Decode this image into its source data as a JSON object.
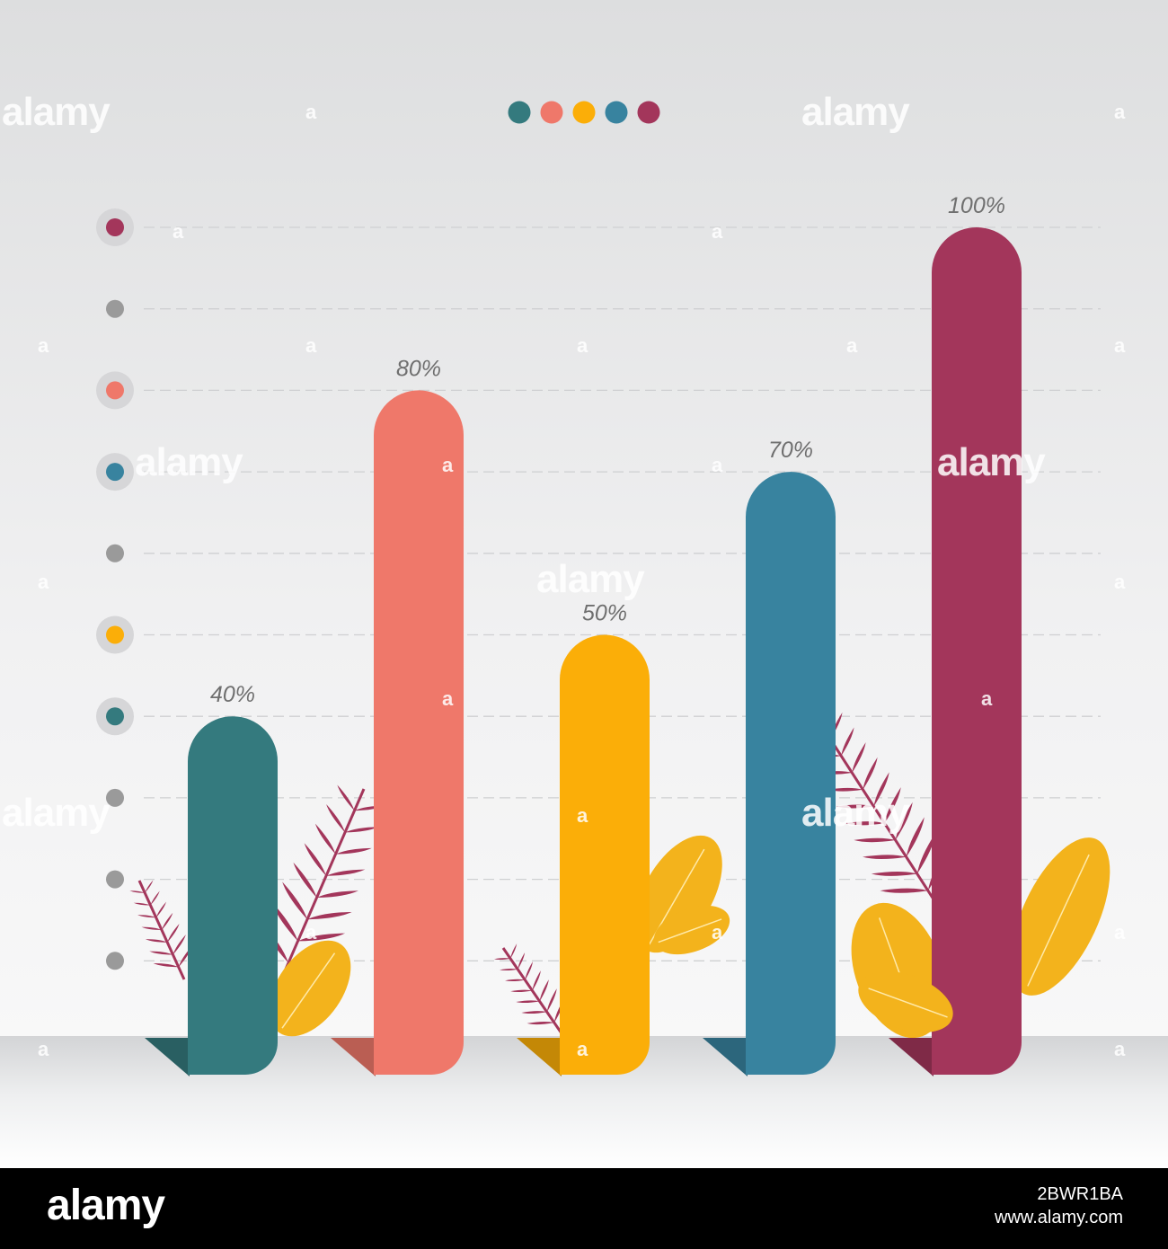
{
  "chart_data": {
    "type": "bar",
    "categories": [
      "",
      "",
      "",
      "",
      ""
    ],
    "values": [
      40,
      80,
      50,
      70,
      100
    ],
    "data_labels": [
      "40%",
      "80%",
      "50%",
      "70%",
      "100%"
    ],
    "ylim": [
      0,
      100
    ],
    "grid": true,
    "legend": "top-center",
    "colors": [
      "#347a7e",
      "#ef786a",
      "#fbae08",
      "#38839f",
      "#a3365b"
    ],
    "axis_dot_colors": [
      "#a3365b",
      "#9a9a9a",
      "#ef786a",
      "#38839f",
      "#9a9a9a",
      "#fbae08",
      "#347a7e",
      "#9a9a9a",
      "#9a9a9a",
      "#9a9a9a"
    ],
    "legend_dot_colors": [
      "#347a7e",
      "#ef786a",
      "#fbae08",
      "#38839f",
      "#a3365b"
    ],
    "leaf_colors": {
      "fern": "#a3365b",
      "leaf": "#f3b31c"
    }
  },
  "watermark": {
    "text": "alamy",
    "mark": "a"
  },
  "footer": {
    "logo": "alamy",
    "image_id": "2BWR1BA",
    "url": "www.alamy.com"
  }
}
